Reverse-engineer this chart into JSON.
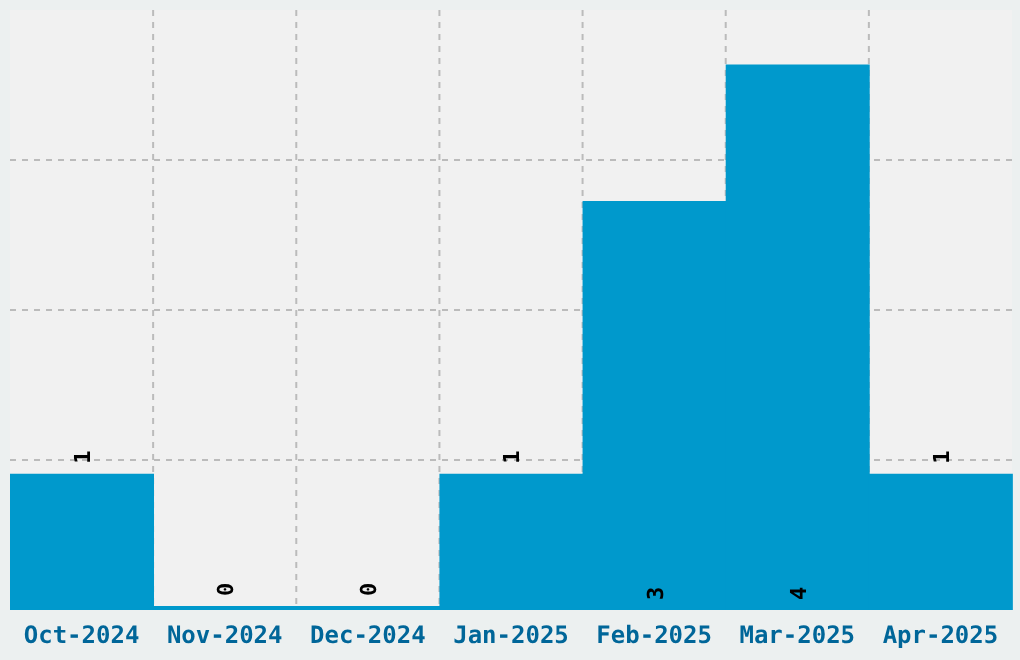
{
  "chart_data": {
    "type": "bar",
    "categories": [
      "Oct-2024",
      "Nov-2024",
      "Dec-2024",
      "Jan-2025",
      "Feb-2025",
      "Mar-2025",
      "Apr-2025"
    ],
    "values": [
      1,
      0,
      0,
      1,
      3,
      4,
      1
    ],
    "color": "#0099cc",
    "ylim": [
      0,
      4.4
    ],
    "grid": true,
    "data_labels": true,
    "tick_labels": "x"
  }
}
